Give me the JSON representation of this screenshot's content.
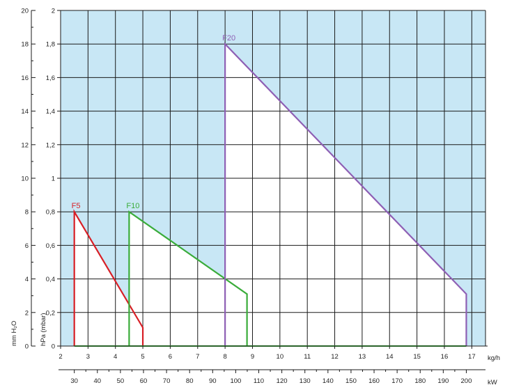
{
  "chart_data": {
    "type": "line",
    "x_axis": {
      "label": "kg/h",
      "ticks": [
        2,
        3,
        4,
        5,
        6,
        7,
        8,
        9,
        10,
        11,
        12,
        13,
        14,
        15,
        16,
        17
      ],
      "range": [
        2,
        17.5
      ]
    },
    "x_axis_secondary": {
      "label": "kW",
      "ticks": [
        30,
        40,
        50,
        60,
        70,
        80,
        90,
        100,
        110,
        120,
        130,
        140,
        150,
        160,
        170,
        180,
        190,
        200
      ]
    },
    "y_axis_left": {
      "label": "mm H₂O",
      "ticks": [
        0,
        2,
        4,
        6,
        8,
        10,
        12,
        14,
        16,
        18,
        20
      ],
      "range": [
        0,
        20
      ]
    },
    "y_axis_right": {
      "label": "hPa (mbar)",
      "ticks": [
        "0",
        "0,2",
        "0,4",
        "0,6",
        "0,8",
        "1",
        "1,2",
        "1,4",
        "1,6",
        "1,8",
        "2"
      ]
    },
    "grid": true,
    "background_color": "#c8e7f5",
    "series": [
      {
        "name": "F5",
        "color": "#d81f26",
        "points": [
          [
            2.5,
            0
          ],
          [
            2.5,
            8
          ],
          [
            5.0,
            1.1
          ],
          [
            5.0,
            0
          ]
        ]
      },
      {
        "name": "F10",
        "color": "#3aac3a",
        "points": [
          [
            4.5,
            0
          ],
          [
            4.5,
            8
          ],
          [
            8.8,
            3.1
          ],
          [
            8.8,
            0
          ]
        ]
      },
      {
        "name": "F20",
        "color": "#8e5fb4",
        "points": [
          [
            8.0,
            0
          ],
          [
            8.0,
            18
          ],
          [
            16.8,
            3.1
          ],
          [
            16.8,
            0
          ]
        ]
      }
    ]
  }
}
